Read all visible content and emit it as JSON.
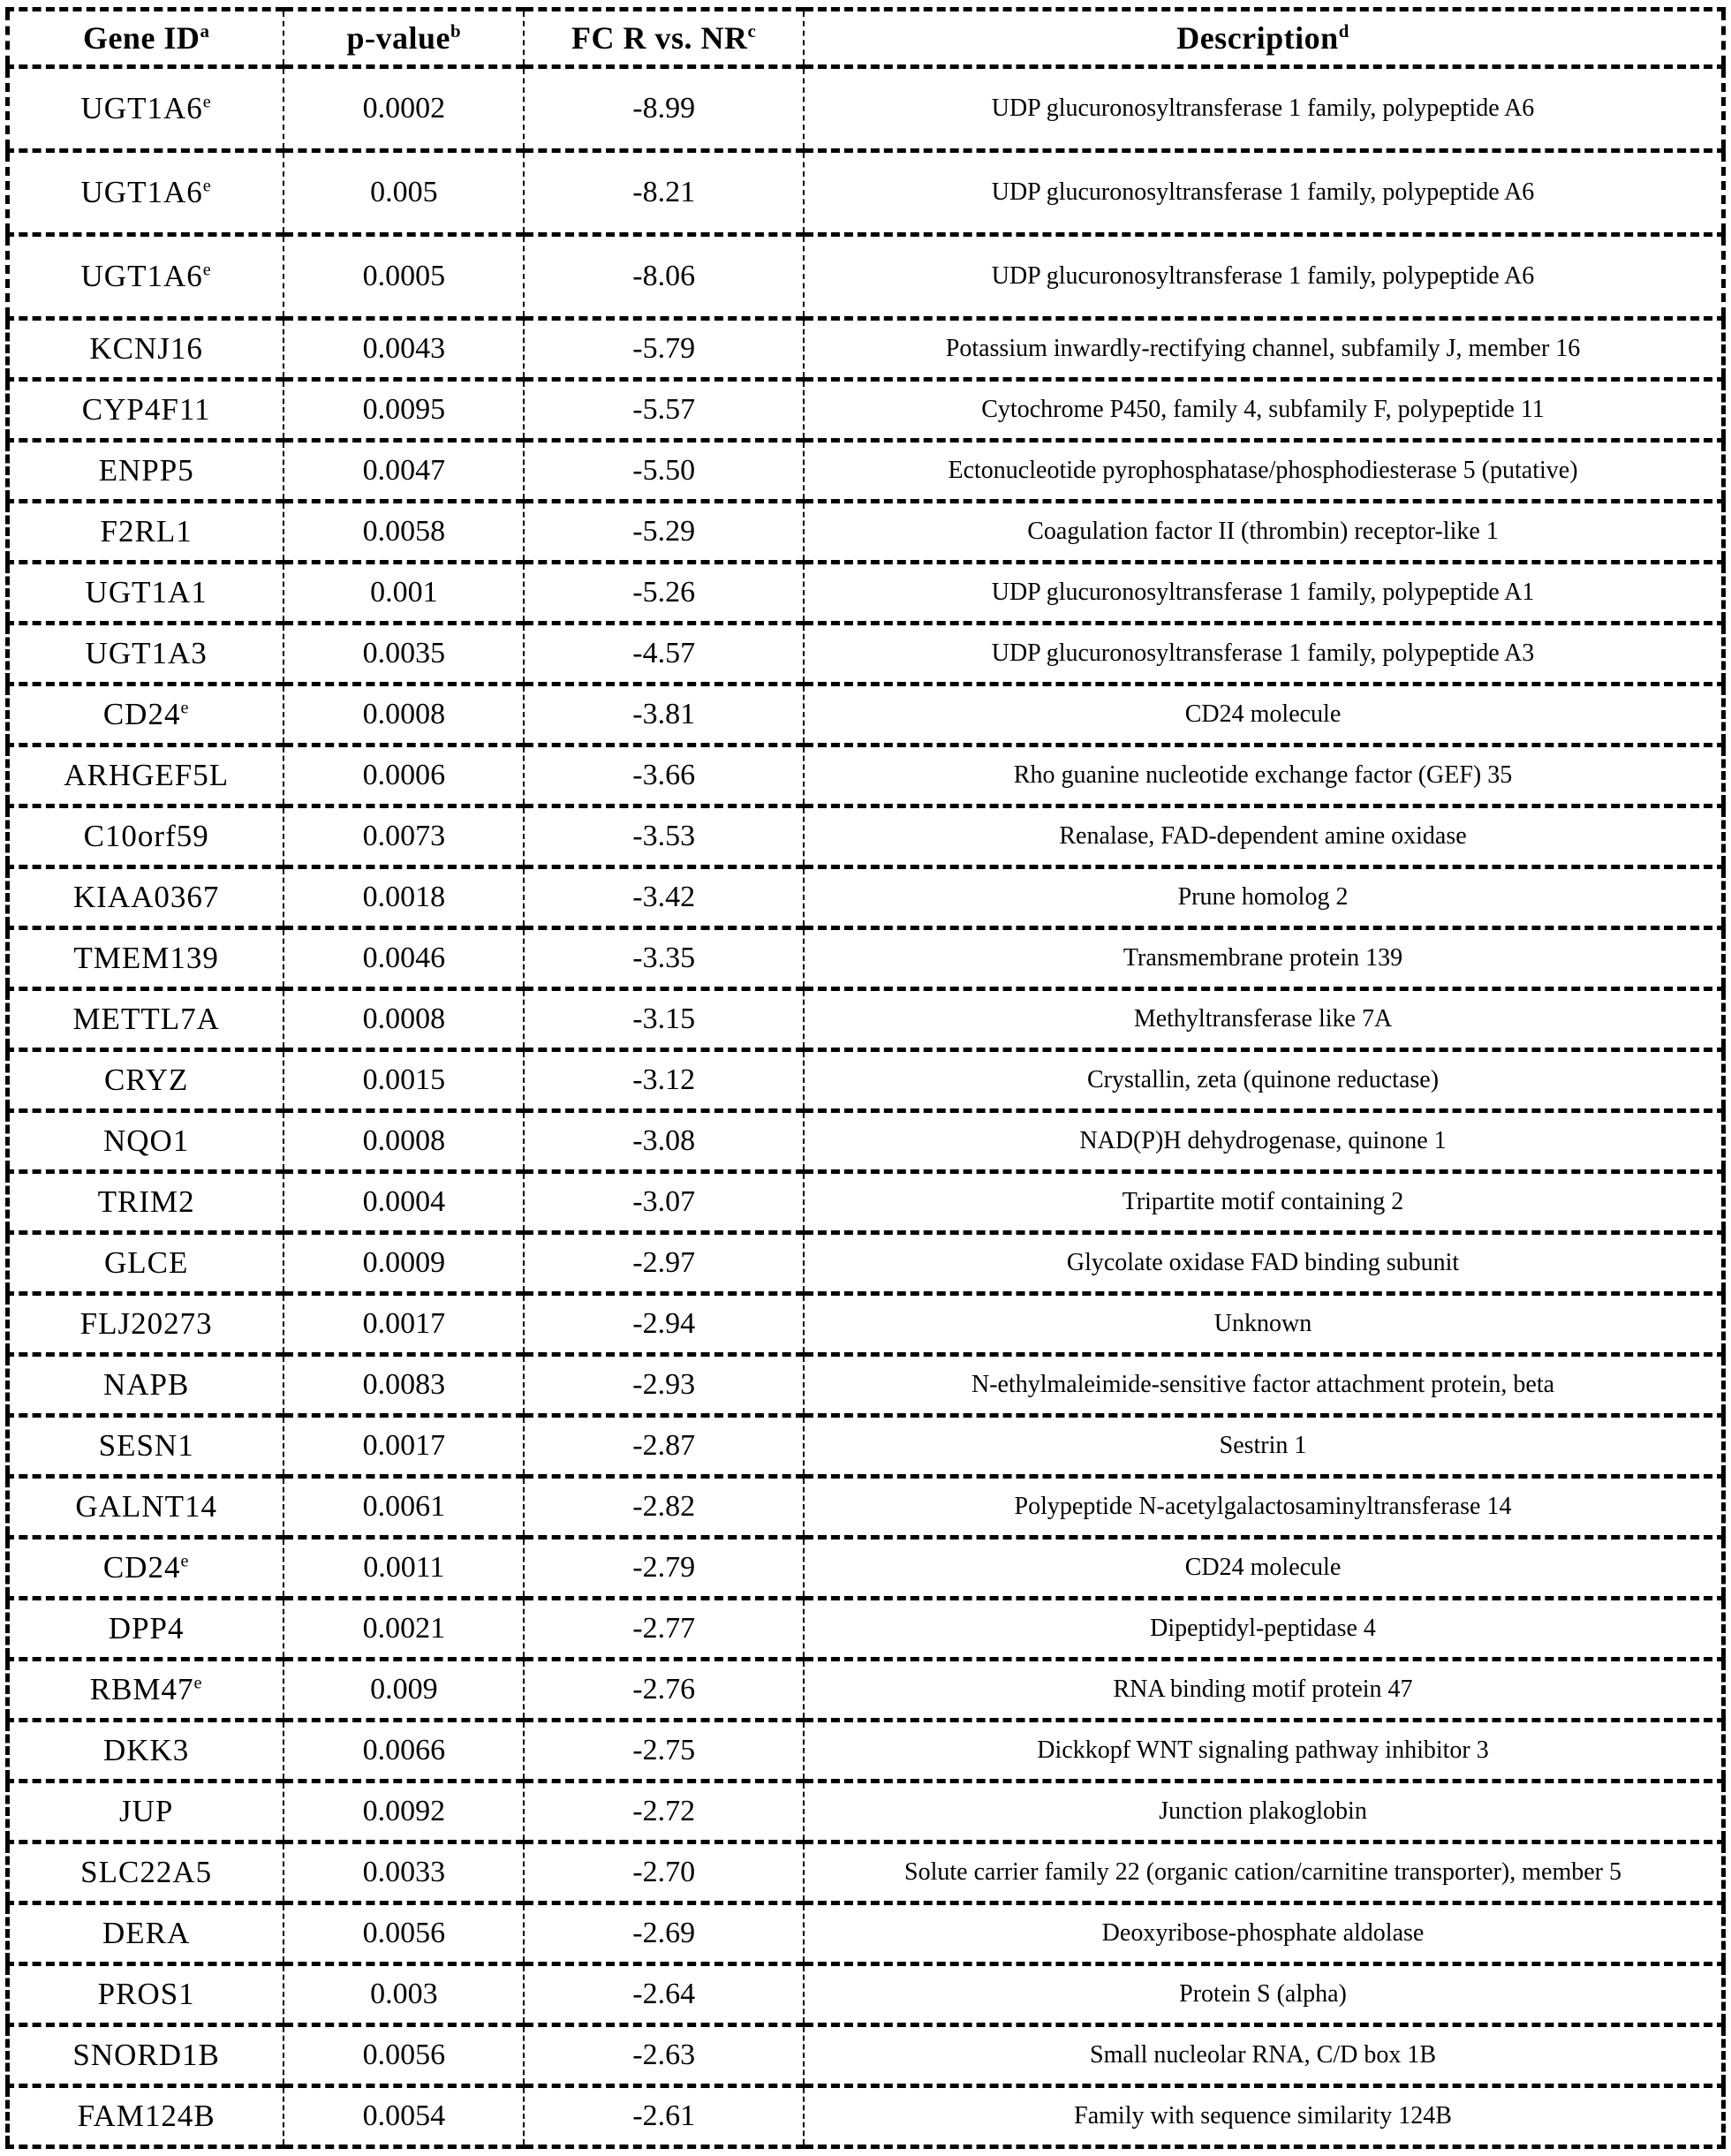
{
  "colors": {
    "background": "#ffffff",
    "text": "#000000",
    "border": "#000000"
  },
  "table": {
    "headers": [
      {
        "label": "Gene ID",
        "sup": "a"
      },
      {
        "label": "p-value",
        "sup": "b"
      },
      {
        "label": "FC R vs. NR",
        "sup": "c"
      },
      {
        "label": "Description",
        "sup": "d"
      }
    ],
    "rows": [
      {
        "gene": "UGT1A6",
        "sup": "e",
        "p": "0.0002",
        "fc": "-8.99",
        "desc": "UDP glucuronosyltransferase 1 family, polypeptide A6",
        "tall": true
      },
      {
        "gene": "UGT1A6",
        "sup": "e",
        "p": "0.005",
        "fc": "-8.21",
        "desc": "UDP glucuronosyltransferase 1 family, polypeptide A6",
        "tall": true
      },
      {
        "gene": "UGT1A6",
        "sup": "e",
        "p": "0.0005",
        "fc": "-8.06",
        "desc": "UDP glucuronosyltransferase 1 family, polypeptide A6",
        "tall": true
      },
      {
        "gene": "KCNJ16",
        "sup": "",
        "p": "0.0043",
        "fc": "-5.79",
        "desc": "Potassium inwardly-rectifying channel, subfamily J, member 16"
      },
      {
        "gene": "CYP4F11",
        "sup": "",
        "p": "0.0095",
        "fc": "-5.57",
        "desc": "Cytochrome P450, family 4, subfamily F, polypeptide 11"
      },
      {
        "gene": "ENPP5",
        "sup": "",
        "p": "0.0047",
        "fc": "-5.50",
        "desc": "Ectonucleotide pyrophosphatase/phosphodiesterase 5 (putative)"
      },
      {
        "gene": "F2RL1",
        "sup": "",
        "p": "0.0058",
        "fc": "-5.29",
        "desc": "Coagulation factor II (thrombin) receptor-like 1"
      },
      {
        "gene": "UGT1A1",
        "sup": "",
        "p": "0.001",
        "fc": "-5.26",
        "desc": "UDP glucuronosyltransferase 1 family, polypeptide A1"
      },
      {
        "gene": "UGT1A3",
        "sup": "",
        "p": "0.0035",
        "fc": "-4.57",
        "desc": "UDP glucuronosyltransferase 1 family, polypeptide A3"
      },
      {
        "gene": "CD24",
        "sup": "e",
        "p": "0.0008",
        "fc": "-3.81",
        "desc": "CD24 molecule"
      },
      {
        "gene": "ARHGEF5L",
        "sup": "",
        "p": "0.0006",
        "fc": "-3.66",
        "desc": "Rho guanine nucleotide exchange factor (GEF) 35"
      },
      {
        "gene": "C10orf59",
        "sup": "",
        "p": "0.0073",
        "fc": "-3.53",
        "desc": "Renalase, FAD-dependent amine oxidase"
      },
      {
        "gene": "KIAA0367",
        "sup": "",
        "p": "0.0018",
        "fc": "-3.42",
        "desc": "Prune homolog 2"
      },
      {
        "gene": "TMEM139",
        "sup": "",
        "p": "0.0046",
        "fc": "-3.35",
        "desc": "Transmembrane protein 139"
      },
      {
        "gene": "METTL7A",
        "sup": "",
        "p": "0.0008",
        "fc": "-3.15",
        "desc": "Methyltransferase like 7A"
      },
      {
        "gene": "CRYZ",
        "sup": "",
        "p": "0.0015",
        "fc": "-3.12",
        "desc": "Crystallin, zeta (quinone reductase)"
      },
      {
        "gene": "NQO1",
        "sup": "",
        "p": "0.0008",
        "fc": "-3.08",
        "desc": "NAD(P)H dehydrogenase, quinone 1"
      },
      {
        "gene": "TRIM2",
        "sup": "",
        "p": "0.0004",
        "fc": "-3.07",
        "desc": "Tripartite motif containing 2"
      },
      {
        "gene": "GLCE",
        "sup": "",
        "p": "0.0009",
        "fc": "-2.97",
        "desc": "Glycolate oxidase FAD binding subunit"
      },
      {
        "gene": "FLJ20273",
        "sup": "",
        "p": "0.0017",
        "fc": "-2.94",
        "desc": "Unknown"
      },
      {
        "gene": "NAPB",
        "sup": "",
        "p": "0.0083",
        "fc": "-2.93",
        "desc": "N-ethylmaleimide-sensitive factor attachment protein, beta"
      },
      {
        "gene": "SESN1",
        "sup": "",
        "p": "0.0017",
        "fc": "-2.87",
        "desc": "Sestrin 1"
      },
      {
        "gene": "GALNT14",
        "sup": "",
        "p": "0.0061",
        "fc": "-2.82",
        "desc": "Polypeptide N-acetylgalactosaminyltransferase 14"
      },
      {
        "gene": "CD24",
        "sup": "e",
        "p": "0.0011",
        "fc": "-2.79",
        "desc": "CD24 molecule"
      },
      {
        "gene": "DPP4",
        "sup": "",
        "p": "0.0021",
        "fc": "-2.77",
        "desc": "Dipeptidyl-peptidase 4"
      },
      {
        "gene": "RBM47",
        "sup": "e",
        "p": "0.009",
        "fc": "-2.76",
        "desc": "RNA binding motif protein 47"
      },
      {
        "gene": "DKK3",
        "sup": "",
        "p": "0.0066",
        "fc": "-2.75",
        "desc": "Dickkopf WNT signaling pathway inhibitor 3"
      },
      {
        "gene": "JUP",
        "sup": "",
        "p": "0.0092",
        "fc": "-2.72",
        "desc": "Junction plakoglobin"
      },
      {
        "gene": "SLC22A5",
        "sup": "",
        "p": "0.0033",
        "fc": "-2.70",
        "desc": "Solute carrier family 22 (organic cation/carnitine transporter), member 5"
      },
      {
        "gene": "DERA",
        "sup": "",
        "p": "0.0056",
        "fc": "-2.69",
        "desc": "Deoxyribose-phosphate aldolase"
      },
      {
        "gene": "PROS1",
        "sup": "",
        "p": "0.003",
        "fc": "-2.64",
        "desc": "Protein S (alpha)"
      },
      {
        "gene": "SNORD1B",
        "sup": "",
        "p": "0.0056",
        "fc": "-2.63",
        "desc": "Small nucleolar RNA, C/D box 1B"
      },
      {
        "gene": "FAM124B",
        "sup": "",
        "p": "0.0054",
        "fc": "-2.61",
        "desc": "Family with sequence similarity 124B"
      }
    ]
  }
}
